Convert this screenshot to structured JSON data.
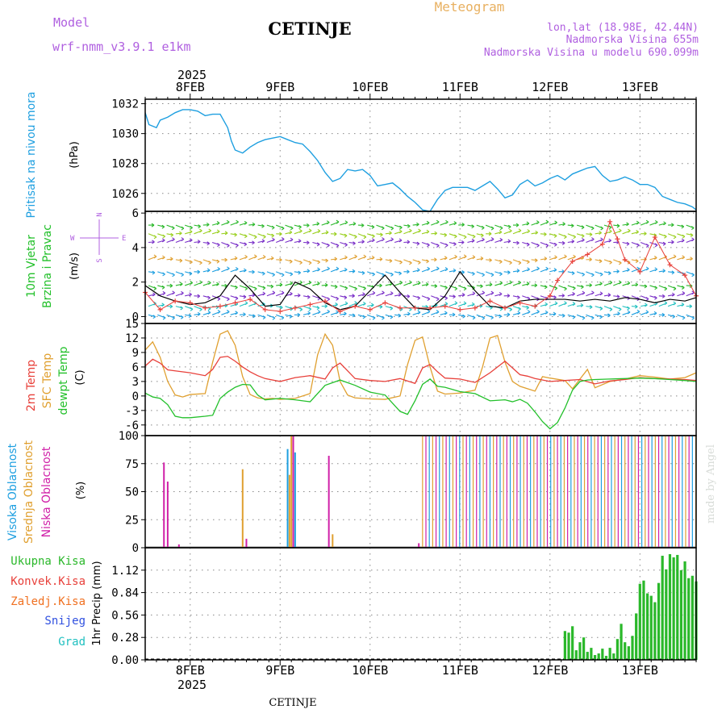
{
  "header": {
    "label_model": "Model",
    "model_name": "wrf-nmm_v3.9.1 e1km",
    "station": "CETINJE",
    "product": "Meteogram",
    "lonlat": "lon,lat (18.98E, 42.44N)",
    "altitude": "Nadmorska Visina 655m",
    "model_altitude": "Nadmorska Visina u modelu 690.099m"
  },
  "footer": {
    "station": "CETINJE",
    "credit": "made by Angel"
  },
  "time_axis": {
    "year": "2025",
    "day_labels": [
      "8FEB",
      "9FEB",
      "10FEB",
      "11FEB",
      "12FEB",
      "13FEB"
    ],
    "start_hour": 0,
    "end_hour": 147,
    "day_hours": [
      12,
      36,
      60,
      84,
      108,
      132
    ]
  },
  "colors": {
    "pressure": "#1e9fe0",
    "temp2m": "#e8403a",
    "sfc_temp": "#e0a030",
    "dewpoint": "#22c02a",
    "wind_speed": "#000000",
    "gust": "#e8403a",
    "cloud_high": "#1e9fe0",
    "cloud_mid": "#e0a030",
    "cloud_low": "#d020a8",
    "precip_total": "#2ab82a",
    "precip_conv": "#e8403a",
    "precip_frz": "#f07020",
    "snow": "#3050e0",
    "graupel": "#20c0c0",
    "label_purple": "#b060e0",
    "label_orange": "#e8b060"
  },
  "chart_data": [
    {
      "type": "line",
      "panel": "pressure",
      "ylabel": "Pritisak na nivou mora",
      "unit": "(hPa)",
      "ylim": [
        1024.8,
        1032.3
      ],
      "yticks": [
        1026,
        1028,
        1030,
        1032
      ],
      "series": [
        {
          "x": [
            0,
            1,
            2,
            3,
            4,
            6,
            8,
            10,
            12,
            14,
            16,
            18,
            20,
            22,
            23,
            24,
            26,
            28,
            30,
            32,
            34,
            36,
            38,
            40,
            42,
            44,
            46,
            48,
            50,
            52,
            54,
            56,
            58,
            60,
            62,
            64,
            66,
            68,
            70,
            72,
            74,
            76,
            78,
            80,
            82,
            84,
            86,
            88,
            90,
            92,
            94,
            96,
            98,
            100,
            102,
            104,
            106,
            108,
            110,
            112,
            114,
            116,
            118,
            120,
            122,
            124,
            126,
            128,
            130,
            132,
            134,
            136,
            138,
            140,
            142,
            144,
            146,
            147
          ],
          "values": [
            1031.4,
            1030.6,
            1030.5,
            1030.4,
            1030.9,
            1031.1,
            1031.4,
            1031.6,
            1031.6,
            1031.5,
            1031.2,
            1031.3,
            1031.3,
            1030.4,
            1029.5,
            1028.9,
            1028.7,
            1029.1,
            1029.4,
            1029.6,
            1029.7,
            1029.8,
            1029.6,
            1029.4,
            1029.3,
            1028.8,
            1028.2,
            1027.4,
            1026.8,
            1027.0,
            1027.6,
            1027.5,
            1027.6,
            1027.2,
            1026.5,
            1026.6,
            1026.7,
            1026.3,
            1025.8,
            1025.4,
            1024.9,
            1024.8,
            1025.6,
            1026.2,
            1026.4,
            1026.4,
            1026.4,
            1026.2,
            1026.5,
            1026.8,
            1026.3,
            1025.7,
            1025.9,
            1026.6,
            1026.9,
            1026.5,
            1026.7,
            1027.0,
            1027.2,
            1026.9,
            1027.3,
            1027.5,
            1027.7,
            1027.8,
            1027.2,
            1026.8,
            1026.9,
            1027.1,
            1026.9,
            1026.6,
            1026.6,
            1026.4,
            1025.8,
            1025.6,
            1025.4,
            1025.3,
            1025.1,
            1024.9
          ]
        }
      ]
    },
    {
      "type": "line",
      "panel": "wind",
      "ylabel_1": "10m Vjetar",
      "ylabel_2": "Brzina i Pravac",
      "unit": "(m/s)",
      "ylim": [
        -0.4,
        6.1
      ],
      "yticks": [
        0,
        2,
        4,
        6
      ],
      "compass": {
        "w": "W",
        "e": "E",
        "n": "N",
        "s": "S"
      },
      "arrow_rows": [
        {
          "y": 5.3,
          "color": "#2ab82a"
        },
        {
          "y": 4.8,
          "color": "#9ad020"
        },
        {
          "y": 4.3,
          "color": "#7a30c8"
        },
        {
          "y": 3.3,
          "color": "#e0a030"
        },
        {
          "y": 2.6,
          "color": "#1e9fe0"
        },
        {
          "y": 1.8,
          "color": "#2ab82a"
        },
        {
          "y": 1.2,
          "color": "#7a30c8"
        },
        {
          "y": 0.6,
          "color": "#20c0c0"
        },
        {
          "y": 0.1,
          "color": "#1e9fe0"
        }
      ],
      "series": [
        {
          "name": "speed",
          "x": [
            0,
            4,
            8,
            12,
            16,
            20,
            24,
            28,
            32,
            36,
            40,
            44,
            48,
            52,
            56,
            60,
            64,
            68,
            72,
            76,
            80,
            84,
            88,
            92,
            96,
            100,
            104,
            108,
            112,
            116,
            120,
            124,
            128,
            132,
            136,
            140,
            144,
            147
          ],
          "values": [
            1.8,
            1.2,
            0.9,
            0.7,
            0.8,
            1.2,
            2.4,
            1.6,
            0.6,
            0.7,
            2.0,
            1.6,
            0.8,
            0.4,
            0.6,
            1.5,
            2.4,
            1.4,
            0.5,
            0.4,
            1.2,
            2.6,
            1.5,
            0.6,
            0.5,
            0.9,
            1.0,
            1.0,
            1.0,
            0.9,
            1.0,
            0.9,
            1.1,
            1.0,
            0.8,
            1.0,
            0.9,
            1.1
          ]
        },
        {
          "name": "gust",
          "x": [
            0,
            4,
            8,
            12,
            16,
            20,
            24,
            28,
            32,
            36,
            40,
            44,
            48,
            52,
            56,
            60,
            64,
            68,
            72,
            76,
            80,
            84,
            88,
            92,
            96,
            100,
            104,
            108,
            110,
            114,
            118,
            122,
            124,
            126,
            128,
            132,
            136,
            140,
            144,
            147
          ],
          "values": [
            1.4,
            0.4,
            0.9,
            0.8,
            0.5,
            0.6,
            0.8,
            1.0,
            0.4,
            0.3,
            0.5,
            0.7,
            0.9,
            0.3,
            0.6,
            0.4,
            0.8,
            0.5,
            0.5,
            0.5,
            0.6,
            0.4,
            0.5,
            0.9,
            0.5,
            0.8,
            0.6,
            1.2,
            2.1,
            3.2,
            3.6,
            4.2,
            5.5,
            4.5,
            3.3,
            2.6,
            4.6,
            3.0,
            2.4,
            1.2
          ]
        }
      ]
    },
    {
      "type": "line",
      "panel": "temperature",
      "ylabel_1": "2m Temp",
      "ylabel_2": "SFC Temp",
      "ylabel_3": "dewpt Temp",
      "unit": "(C)",
      "ylim": [
        -8.2,
        15
      ],
      "yticks": [
        -6,
        -3,
        0,
        3,
        6,
        9,
        12,
        15
      ],
      "series": [
        {
          "name": "2m Temp",
          "x": [
            0,
            2,
            4,
            6,
            8,
            12,
            16,
            18,
            20,
            22,
            24,
            26,
            28,
            30,
            32,
            36,
            40,
            44,
            48,
            50,
            52,
            54,
            56,
            60,
            64,
            68,
            72,
            74,
            76,
            78,
            80,
            84,
            88,
            92,
            96,
            98,
            100,
            102,
            104,
            108,
            112,
            116,
            120,
            124,
            128,
            132,
            136,
            140,
            144,
            147
          ],
          "values": [
            6.2,
            7.6,
            6.8,
            5.4,
            5.2,
            4.8,
            4.2,
            5.5,
            8.0,
            8.2,
            7.2,
            6.0,
            5.0,
            4.2,
            3.6,
            3.0,
            3.8,
            4.2,
            3.5,
            5.8,
            6.8,
            5.2,
            3.6,
            3.2,
            3.0,
            3.6,
            2.6,
            5.8,
            6.5,
            5.0,
            3.7,
            3.5,
            2.8,
            4.8,
            7.2,
            5.8,
            4.4,
            4.1,
            3.6,
            3.0,
            3.2,
            3.4,
            2.5,
            3.1,
            3.4,
            3.8,
            3.6,
            3.5,
            3.4,
            3.2
          ]
        },
        {
          "name": "SFC Temp",
          "x": [
            0,
            2,
            4,
            6,
            8,
            10,
            12,
            16,
            18,
            20,
            22,
            24,
            26,
            28,
            30,
            32,
            34,
            36,
            40,
            44,
            46,
            48,
            50,
            52,
            54,
            56,
            58,
            60,
            64,
            68,
            70,
            72,
            74,
            76,
            78,
            80,
            82,
            84,
            88,
            90,
            92,
            94,
            96,
            98,
            100,
            102,
            104,
            106,
            108,
            112,
            114,
            116,
            118,
            120,
            124,
            128,
            132,
            136,
            140,
            144,
            147
          ],
          "values": [
            9.5,
            11.2,
            8.0,
            3.0,
            0.2,
            -0.2,
            0.3,
            0.5,
            7.0,
            12.8,
            13.5,
            10.5,
            4.0,
            0.3,
            -0.4,
            -0.6,
            -0.5,
            -0.7,
            -0.5,
            0.5,
            8.5,
            12.8,
            10.5,
            3.0,
            0.2,
            -0.4,
            -0.5,
            -0.6,
            -0.7,
            0.0,
            6.5,
            11.5,
            12.2,
            6.0,
            1.0,
            0.4,
            0.5,
            0.6,
            1.2,
            6.0,
            12.0,
            12.5,
            7.0,
            3.0,
            2.0,
            1.5,
            1.0,
            4.0,
            3.7,
            3.2,
            1.5,
            3.5,
            5.5,
            1.7,
            3.0,
            3.5,
            4.2,
            3.9,
            3.5,
            3.8,
            4.8
          ]
        },
        {
          "name": "dewpt Temp",
          "x": [
            0,
            2,
            4,
            6,
            8,
            10,
            12,
            16,
            18,
            20,
            22,
            24,
            26,
            28,
            30,
            32,
            36,
            40,
            44,
            48,
            52,
            56,
            60,
            64,
            68,
            70,
            72,
            74,
            76,
            78,
            80,
            84,
            88,
            92,
            96,
            98,
            100,
            102,
            104,
            106,
            108,
            110,
            112,
            114,
            116,
            118,
            120,
            124,
            128,
            132,
            136,
            140,
            144,
            147
          ],
          "values": [
            0.6,
            -0.2,
            -0.5,
            -1.8,
            -4.2,
            -4.5,
            -4.5,
            -4.2,
            -4.0,
            -0.5,
            0.8,
            1.8,
            2.4,
            2.3,
            0.2,
            -0.8,
            -0.5,
            -0.8,
            -1.2,
            2.2,
            3.3,
            2.2,
            0.8,
            0.2,
            -3.2,
            -3.8,
            -1.0,
            2.4,
            3.5,
            2.0,
            1.8,
            0.9,
            0.5,
            -1.0,
            -0.8,
            -1.2,
            -0.7,
            -1.5,
            -3.3,
            -5.3,
            -6.8,
            -5.5,
            -2.5,
            1.2,
            3.0,
            3.3,
            3.4,
            3.5,
            3.6,
            3.7,
            3.6,
            3.4,
            3.2,
            3.0
          ]
        }
      ]
    },
    {
      "type": "bar",
      "panel": "clouds",
      "ylabel_1": "Visoka Oblacnost",
      "ylabel_2": "Srednja Oblacnost",
      "ylabel_3": "Niska Oblacnost",
      "unit": "(%)",
      "ylim": [
        0,
        100
      ],
      "yticks": [
        0,
        25,
        50,
        75,
        100
      ],
      "overcast_from_hour": 74,
      "bars": [
        {
          "x": 5,
          "layer": "low",
          "value": 76
        },
        {
          "x": 6,
          "layer": "low",
          "value": 59
        },
        {
          "x": 9,
          "layer": "low",
          "value": 3
        },
        {
          "x": 26,
          "layer": "mid",
          "value": 70
        },
        {
          "x": 27,
          "layer": "low",
          "value": 8
        },
        {
          "x": 38,
          "layer": "high",
          "value": 88
        },
        {
          "x": 38.5,
          "layer": "mid",
          "value": 65
        },
        {
          "x": 39,
          "layer": "mid",
          "value": 100
        },
        {
          "x": 39.5,
          "layer": "low",
          "value": 100
        },
        {
          "x": 40,
          "layer": "high",
          "value": 85
        },
        {
          "x": 49,
          "layer": "low",
          "value": 82
        },
        {
          "x": 50,
          "layer": "mid",
          "value": 12
        },
        {
          "x": 73,
          "layer": "low",
          "value": 4
        }
      ]
    },
    {
      "type": "bar",
      "panel": "precipitation",
      "legend": [
        "Ukupna Kisa",
        "Konvek.Kisa",
        "Zaledj.Kisa",
        "Snijeg",
        "Grad"
      ],
      "ylabel": "1hr Precip (mm)",
      "ylim": [
        0,
        1.4
      ],
      "yticks": [
        0,
        0.28,
        0.56,
        0.84,
        1.12
      ],
      "x": [
        112,
        113,
        114,
        115,
        116,
        117,
        118,
        119,
        120,
        121,
        122,
        123,
        124,
        125,
        126,
        127,
        128,
        129,
        130,
        131,
        132,
        133,
        134,
        135,
        136,
        137,
        138,
        139,
        140,
        141,
        142,
        143,
        144,
        145,
        146,
        147
      ],
      "values": [
        0.36,
        0.34,
        0.42,
        0.12,
        0.22,
        0.28,
        0.1,
        0.15,
        0.06,
        0.08,
        0.14,
        0.05,
        0.15,
        0.08,
        0.26,
        0.45,
        0.22,
        0.17,
        0.3,
        0.58,
        0.95,
        0.99,
        0.83,
        0.8,
        0.72,
        0.96,
        1.3,
        1.13,
        1.32,
        1.28,
        1.31,
        1.12,
        1.23,
        1.02,
        1.05,
        0.98
      ]
    }
  ]
}
